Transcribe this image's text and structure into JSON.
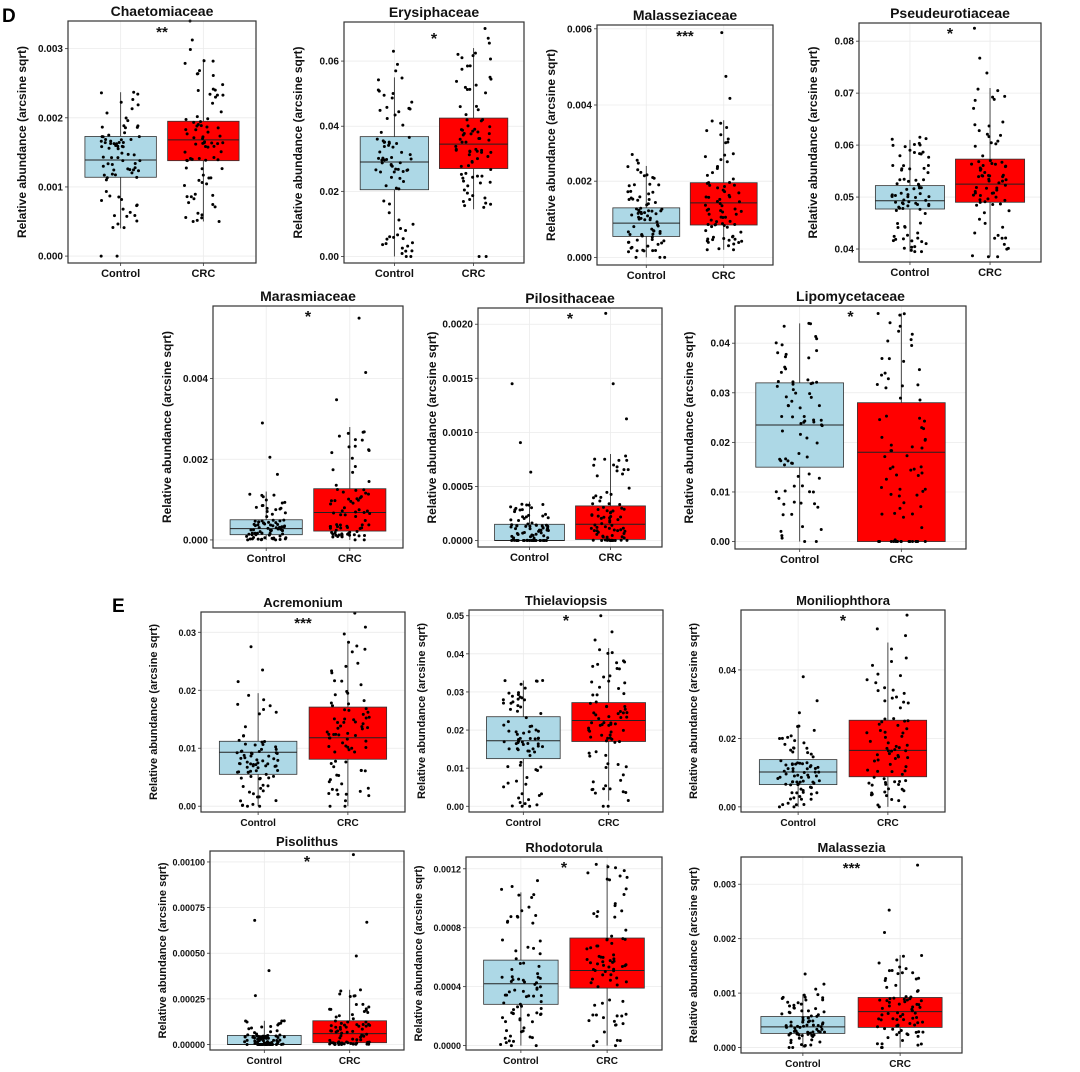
{
  "sections": {
    "d": "D",
    "e": "E"
  },
  "colors": {
    "control": "#add8e6",
    "crc": "#ff0000",
    "frame": "#333333",
    "grid": "#ebebeb",
    "point": "#000000"
  },
  "chart_data": [
    {
      "type": "box",
      "title": "Chaetomiaceae",
      "significance": "**",
      "ylabel": "Relative abundance (arcsine sqrt)",
      "categories": [
        "Control",
        "CRC"
      ],
      "yticks": [
        "0.000",
        "0.001",
        "0.002",
        "0.003"
      ],
      "ylim": [
        -0.0001,
        0.0034
      ],
      "series": [
        {
          "q1": 0.00114,
          "median": 0.00139,
          "q3": 0.00173,
          "low": 0.0004,
          "high": 0.00237,
          "max_point": 0.00237,
          "min_point": 0.0
        },
        {
          "q1": 0.00138,
          "median": 0.00168,
          "q3": 0.00195,
          "low": 0.0005,
          "high": 0.00285,
          "max_point": 0.0034,
          "min_point": 0.0005
        }
      ]
    },
    {
      "type": "box",
      "title": "Erysiphaceae",
      "significance": "*",
      "ylabel": "Relative abundance (arcsine sqrt)",
      "categories": [
        "Control",
        "CRC"
      ],
      "yticks": [
        "0.00",
        "0.02",
        "0.04",
        "0.06"
      ],
      "ylim": [
        -0.002,
        0.072
      ],
      "series": [
        {
          "q1": 0.0205,
          "median": 0.029,
          "q3": 0.0368,
          "low": 0.0,
          "high": 0.055,
          "max_point": 0.063,
          "min_point": 0.0
        },
        {
          "q1": 0.027,
          "median": 0.0345,
          "q3": 0.0425,
          "low": 0.0145,
          "high": 0.064,
          "max_point": 0.07,
          "min_point": 0.0
        }
      ]
    },
    {
      "type": "box",
      "title": "Malasseziaceae",
      "significance": "***",
      "ylabel": "Relative abundance (arcsine sqrt)",
      "categories": [
        "Control",
        "CRC"
      ],
      "yticks": [
        "0.000",
        "0.002",
        "0.004",
        "0.006"
      ],
      "ylim": [
        -0.0002,
        0.0061
      ],
      "series": [
        {
          "q1": 0.00055,
          "median": 0.0009,
          "q3": 0.0013,
          "low": 0.0,
          "high": 0.0024,
          "max_point": 0.0027,
          "min_point": 0.0
        },
        {
          "q1": 0.00085,
          "median": 0.00143,
          "q3": 0.00196,
          "low": 0.0002,
          "high": 0.0036,
          "max_point": 0.0059,
          "min_point": 0.0002
        }
      ]
    },
    {
      "type": "box",
      "title": "Pseudeurotiaceae",
      "significance": "*",
      "ylabel": "Relative abundance (arcsine sqrt)",
      "categories": [
        "Control",
        "CRC"
      ],
      "yticks": [
        "0.04",
        "0.05",
        "0.06",
        "0.07",
        "0.08"
      ],
      "ylim": [
        0.0375,
        0.0835
      ],
      "series": [
        {
          "q1": 0.0477,
          "median": 0.0493,
          "q3": 0.0522,
          "low": 0.0395,
          "high": 0.061,
          "max_point": 0.0615,
          "min_point": 0.0395
        },
        {
          "q1": 0.049,
          "median": 0.0525,
          "q3": 0.0573,
          "low": 0.0385,
          "high": 0.071,
          "max_point": 0.0825,
          "min_point": 0.0385
        }
      ]
    },
    {
      "type": "box",
      "title": "Marasmiaceae",
      "significance": "*",
      "ylabel": "Relative abundance (arcsine sqrt)",
      "categories": [
        "Control",
        "CRC"
      ],
      "yticks": [
        "0.000",
        "0.002",
        "0.004"
      ],
      "ylim": [
        -0.0002,
        0.0058
      ],
      "series": [
        {
          "q1": 0.00013,
          "median": 0.00028,
          "q3": 0.0005,
          "low": 0.0,
          "high": 0.0012,
          "max_point": 0.0029,
          "min_point": 0.0
        },
        {
          "q1": 0.00022,
          "median": 0.00068,
          "q3": 0.00127,
          "low": 0.0,
          "high": 0.0028,
          "max_point": 0.0055,
          "min_point": 0.0
        }
      ]
    },
    {
      "type": "box",
      "title": "Pilosithaceae",
      "significance": "*",
      "ylabel": "Relative abundance (arcsine sqrt)",
      "categories": [
        "Control",
        "CRC"
      ],
      "yticks": [
        "0.0000",
        "0.0005",
        "0.0010",
        "0.0015",
        "0.0020"
      ],
      "ylim": [
        -6e-05,
        0.00215
      ],
      "series": [
        {
          "q1": 0.0,
          "median": 0.0,
          "q3": 0.00015,
          "low": 0.0,
          "high": 0.00036,
          "max_point": 0.00145,
          "min_point": 0.0
        },
        {
          "q1": 1e-05,
          "median": 0.00015,
          "q3": 0.00032,
          "low": 0.0,
          "high": 0.0008,
          "max_point": 0.0021,
          "min_point": 0.0
        }
      ]
    },
    {
      "type": "box",
      "title": "Lipomycetaceae",
      "significance": "*",
      "ylabel": "Relative abundance (arcsine sqrt)",
      "categories": [
        "Control",
        "CRC"
      ],
      "yticks": [
        "0.00",
        "0.01",
        "0.02",
        "0.03",
        "0.04"
      ],
      "ylim": [
        -0.0015,
        0.0475
      ],
      "series": [
        {
          "q1": 0.015,
          "median": 0.0235,
          "q3": 0.032,
          "low": 0.0,
          "high": 0.044,
          "max_point": 0.044,
          "min_point": 0.0
        },
        {
          "q1": 0.0,
          "median": 0.018,
          "q3": 0.028,
          "low": 0.0,
          "high": 0.046,
          "max_point": 0.046,
          "min_point": 0.0
        }
      ]
    },
    {
      "type": "box",
      "title": "Acremonium",
      "significance": "***",
      "ylabel": "Relative abundance (arcsine sqrt)",
      "categories": [
        "Control",
        "CRC"
      ],
      "yticks": [
        "0.00",
        "0.01",
        "0.02",
        "0.03"
      ],
      "ylim": [
        -0.001,
        0.0335
      ],
      "series": [
        {
          "q1": 0.0055,
          "median": 0.0093,
          "q3": 0.0112,
          "low": 0.0,
          "high": 0.0195,
          "max_point": 0.0275,
          "min_point": 0.0
        },
        {
          "q1": 0.0081,
          "median": 0.0118,
          "q3": 0.0171,
          "low": 0.0,
          "high": 0.0285,
          "max_point": 0.0333,
          "min_point": 0.0
        }
      ]
    },
    {
      "type": "box",
      "title": "Thielaviopsis",
      "significance": "*",
      "ylabel": "Relative abundance (arcsine sqrt)",
      "categories": [
        "Control",
        "CRC"
      ],
      "yticks": [
        "0.00",
        "0.01",
        "0.02",
        "0.03",
        "0.04",
        "0.05"
      ],
      "ylim": [
        -0.0015,
        0.0515
      ],
      "series": [
        {
          "q1": 0.0125,
          "median": 0.0172,
          "q3": 0.0235,
          "low": 0.0,
          "high": 0.033,
          "max_point": 0.033,
          "min_point": 0.0
        },
        {
          "q1": 0.017,
          "median": 0.0225,
          "q3": 0.0272,
          "low": 0.0015,
          "high": 0.0415,
          "max_point": 0.05,
          "min_point": 0.0
        }
      ]
    },
    {
      "type": "box",
      "title": "Moniliophthora",
      "significance": "*",
      "ylabel": "Relative abundance (arcsine sqrt)",
      "categories": [
        "Control",
        "CRC"
      ],
      "yticks": [
        "0.00",
        "0.02",
        "0.04"
      ],
      "ylim": [
        -0.0015,
        0.0575
      ],
      "series": [
        {
          "q1": 0.0065,
          "median": 0.0102,
          "q3": 0.0138,
          "low": 0.0,
          "high": 0.024,
          "max_point": 0.038,
          "min_point": 0.0
        },
        {
          "q1": 0.0088,
          "median": 0.0165,
          "q3": 0.0253,
          "low": 0.0,
          "high": 0.048,
          "max_point": 0.056,
          "min_point": 0.0
        }
      ]
    },
    {
      "type": "box",
      "title": "Pisolithus",
      "significance": "*",
      "ylabel": "Relative abundance (arcsine sqrt)",
      "categories": [
        "Control",
        "CRC"
      ],
      "yticks": [
        "0.00000",
        "0.00025",
        "0.00050",
        "0.00075",
        "0.00100"
      ],
      "ylim": [
        -3e-05,
        0.00106
      ],
      "series": [
        {
          "q1": 0.0,
          "median": 0.0,
          "q3": 5e-05,
          "low": 0.0,
          "high": 0.00013,
          "max_point": 0.00068,
          "min_point": 0.0
        },
        {
          "q1": 1e-05,
          "median": 6e-05,
          "q3": 0.00013,
          "low": 0.0,
          "high": 0.0003,
          "max_point": 0.00104,
          "min_point": 0.0
        }
      ]
    },
    {
      "type": "box",
      "title": "Rhodotorula",
      "significance": "*",
      "ylabel": "Relative abundance (arcsine sqrt)",
      "categories": [
        "Control",
        "CRC"
      ],
      "yticks": [
        "0.0000",
        "0.0004",
        "0.0008",
        "0.0012"
      ],
      "ylim": [
        -3e-05,
        0.00128
      ],
      "series": [
        {
          "q1": 0.00028,
          "median": 0.00042,
          "q3": 0.00058,
          "low": 0.0,
          "high": 0.00104,
          "max_point": 0.00112,
          "min_point": 0.0
        },
        {
          "q1": 0.00039,
          "median": 0.00051,
          "q3": 0.00073,
          "low": 0.0,
          "high": 0.00123,
          "max_point": 0.00123,
          "min_point": 0.0
        }
      ]
    },
    {
      "type": "box",
      "title": "Malassezia",
      "significance": "***",
      "ylabel": "Relative abundance (arcsine sqrt)",
      "categories": [
        "Control",
        "CRC"
      ],
      "yticks": [
        "0.000",
        "0.001",
        "0.002",
        "0.003"
      ],
      "ylim": [
        -0.0001,
        0.0035
      ],
      "series": [
        {
          "q1": 0.00026,
          "median": 0.00038,
          "q3": 0.00057,
          "low": 0.0,
          "high": 0.00098,
          "max_point": 0.00135,
          "min_point": 0.0
        },
        {
          "q1": 0.00037,
          "median": 0.00066,
          "q3": 0.00092,
          "low": 0.0,
          "high": 0.0017,
          "max_point": 0.00335,
          "min_point": 0.0
        }
      ]
    }
  ]
}
